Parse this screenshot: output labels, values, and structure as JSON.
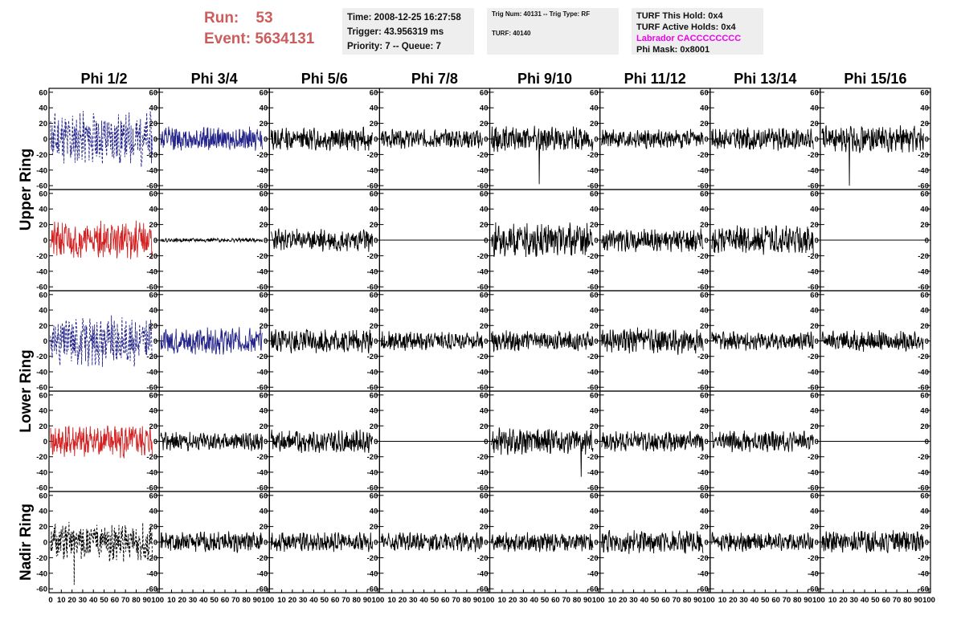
{
  "header": {
    "run_label": "Run:",
    "run_value": "53",
    "event_label": "Event:",
    "event_value": "5634131"
  },
  "info_time": {
    "time": "Time: 2008-12-25 16:27:58",
    "trigger": "Trigger: 43.956319 ms",
    "priority": "Priority: 7 -- Queue: 7"
  },
  "info_trig": {
    "trig": "Trig Num: 40131 -- Trig Type: RF",
    "turf": "TURF: 40140"
  },
  "info_turf": {
    "this_hold": "TURF This Hold: 0x4",
    "active_holds": "TURF Active Holds: 0x4",
    "labrador": "Labrador CACCCCCCCC",
    "phi_mask": "Phi Mask: 0x8001"
  },
  "colors": {
    "run_text": "#cd5c5c",
    "labrador_text": "#ee00ee",
    "trace_black": "#000000",
    "trace_blue": "#22228a",
    "trace_red": "#d42020",
    "info_bg": "#eeeeee"
  },
  "chart_data": {
    "type": "line",
    "columns": [
      "Phi 1/2",
      "Phi 3/4",
      "Phi 5/6",
      "Phi 7/8",
      "Phi 9/10",
      "Phi 11/12",
      "Phi 13/14",
      "Phi 15/16"
    ],
    "ring_labels": [
      "Upper Ring",
      "Lower Ring",
      "Nadir Ring"
    ],
    "row_to_ring": [
      0,
      0,
      1,
      1,
      2
    ],
    "ylim": [
      -65,
      65
    ],
    "xlim": [
      0,
      100
    ],
    "yticks": [
      -60,
      -40,
      -20,
      0,
      20,
      40,
      60
    ],
    "yticks_nadir": [
      -60,
      -40,
      -20,
      0,
      20,
      40,
      60
    ],
    "xtick_label_first": "0",
    "xtick_labels": [
      "10",
      "20",
      "30",
      "40",
      "50",
      "60",
      "70",
      "80",
      "90",
      "100"
    ],
    "grid": false,
    "panels": [
      [
        {
          "style": "dash-blue",
          "amp": 28,
          "seed": 11,
          "spikes": []
        },
        {
          "style": "blue",
          "amp": 13,
          "seed": 12,
          "spikes": []
        },
        {
          "style": "black",
          "amp": 12,
          "seed": 13,
          "spikes": []
        },
        {
          "style": "black",
          "amp": 10,
          "seed": 14,
          "spikes": []
        },
        {
          "style": "black",
          "amp": 13,
          "seed": 15,
          "spikes": [
            [
              47,
              -58
            ]
          ]
        },
        {
          "style": "black",
          "amp": 10,
          "seed": 16,
          "spikes": []
        },
        {
          "style": "black",
          "amp": 12,
          "seed": 17,
          "spikes": []
        },
        {
          "style": "black",
          "amp": 14,
          "seed": 18,
          "spikes": [
            [
              27,
              -60
            ]
          ]
        }
      ],
      [
        {
          "style": "red",
          "amp": 20,
          "seed": 21,
          "spikes": []
        },
        {
          "style": "black",
          "amp": 2,
          "seed": 22,
          "spikes": []
        },
        {
          "style": "black",
          "amp": 12,
          "seed": 23,
          "spikes": []
        },
        {
          "style": "flat",
          "amp": 0,
          "seed": 24,
          "spikes": []
        },
        {
          "style": "black",
          "amp": 18,
          "seed": 25,
          "spikes": []
        },
        {
          "style": "black",
          "amp": 12,
          "seed": 26,
          "spikes": []
        },
        {
          "style": "black",
          "amp": 15,
          "seed": 27,
          "spikes": []
        },
        {
          "style": "flat",
          "amp": 0,
          "seed": 28,
          "spikes": []
        }
      ],
      [
        {
          "style": "dash-blue",
          "amp": 26,
          "seed": 31,
          "spikes": []
        },
        {
          "style": "blue",
          "amp": 14,
          "seed": 32,
          "spikes": []
        },
        {
          "style": "black",
          "amp": 13,
          "seed": 33,
          "spikes": []
        },
        {
          "style": "black",
          "amp": 10,
          "seed": 34,
          "spikes": []
        },
        {
          "style": "black",
          "amp": 11,
          "seed": 35,
          "spikes": []
        },
        {
          "style": "black",
          "amp": 14,
          "seed": 36,
          "spikes": []
        },
        {
          "style": "black",
          "amp": 10,
          "seed": 37,
          "spikes": []
        },
        {
          "style": "black",
          "amp": 11,
          "seed": 38,
          "spikes": []
        }
      ],
      [
        {
          "style": "red",
          "amp": 18,
          "seed": 41,
          "spikes": []
        },
        {
          "style": "black",
          "amp": 10,
          "seed": 42,
          "spikes": []
        },
        {
          "style": "black",
          "amp": 12,
          "seed": 43,
          "spikes": []
        },
        {
          "style": "flat",
          "amp": 0,
          "seed": 44,
          "spikes": []
        },
        {
          "style": "black",
          "amp": 14,
          "seed": 45,
          "spikes": [
            [
              88,
              -46
            ]
          ]
        },
        {
          "style": "black",
          "amp": 11,
          "seed": 46,
          "spikes": []
        },
        {
          "style": "black",
          "amp": 11,
          "seed": 47,
          "spikes": []
        },
        {
          "style": "flat",
          "amp": 0,
          "seed": 48,
          "spikes": []
        }
      ],
      [
        {
          "style": "dash-black",
          "amp": 20,
          "seed": 51,
          "spikes": [
            [
              23,
              -55
            ]
          ]
        },
        {
          "style": "black",
          "amp": 11,
          "seed": 52,
          "spikes": []
        },
        {
          "style": "black",
          "amp": 10,
          "seed": 53,
          "spikes": []
        },
        {
          "style": "black",
          "amp": 10,
          "seed": 54,
          "spikes": []
        },
        {
          "style": "black",
          "amp": 10,
          "seed": 55,
          "spikes": []
        },
        {
          "style": "black",
          "amp": 12,
          "seed": 56,
          "spikes": []
        },
        {
          "style": "black",
          "amp": 10,
          "seed": 57,
          "spikes": []
        },
        {
          "style": "black",
          "amp": 12,
          "seed": 58,
          "spikes": []
        }
      ]
    ]
  }
}
